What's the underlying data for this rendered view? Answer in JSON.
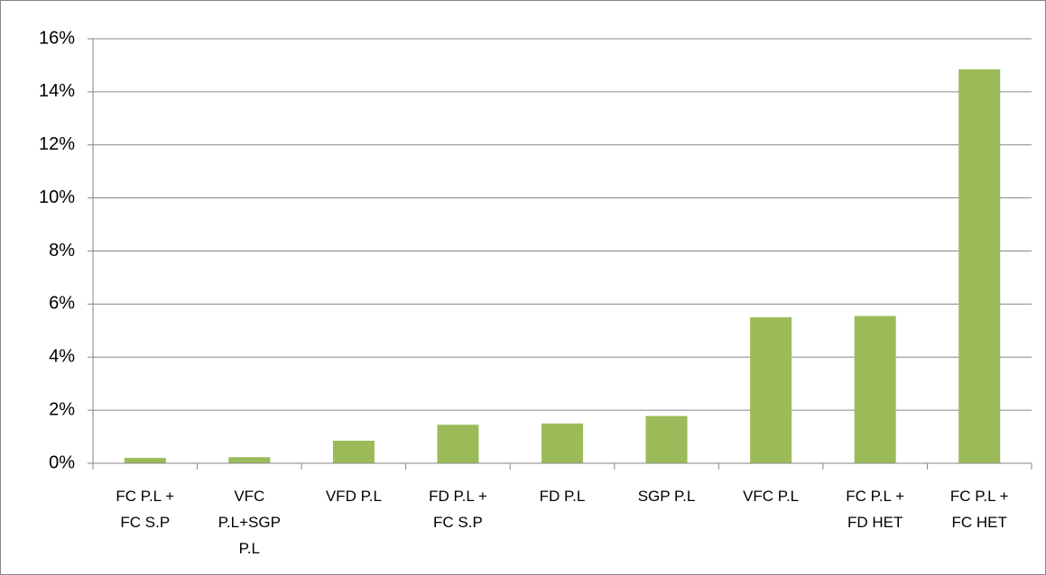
{
  "chart_data": {
    "type": "bar",
    "categories": [
      "FC P.L + FC S.P",
      "VFC P.L+SGP P.L",
      "VFD P.L",
      "FD P.L + FC S.P",
      "FD P.L",
      "SGP P.L",
      "VFC P.L",
      "FC P.L + FD HET",
      "FC P.L + FC HET"
    ],
    "values": [
      0.2,
      0.23,
      0.85,
      1.45,
      1.5,
      1.78,
      5.5,
      5.55,
      14.85
    ],
    "color": "#9bbb59",
    "ylim": [
      0,
      16
    ],
    "yticks": [
      {
        "value": 0,
        "label": "0%"
      },
      {
        "value": 2,
        "label": "2%"
      },
      {
        "value": 4,
        "label": "4%"
      },
      {
        "value": 6,
        "label": "6%"
      },
      {
        "value": 8,
        "label": "8%"
      },
      {
        "value": 10,
        "label": "10%"
      },
      {
        "value": 12,
        "label": "12%"
      },
      {
        "value": 14,
        "label": "14%"
      },
      {
        "value": 16,
        "label": "16%"
      }
    ],
    "grid": true
  }
}
